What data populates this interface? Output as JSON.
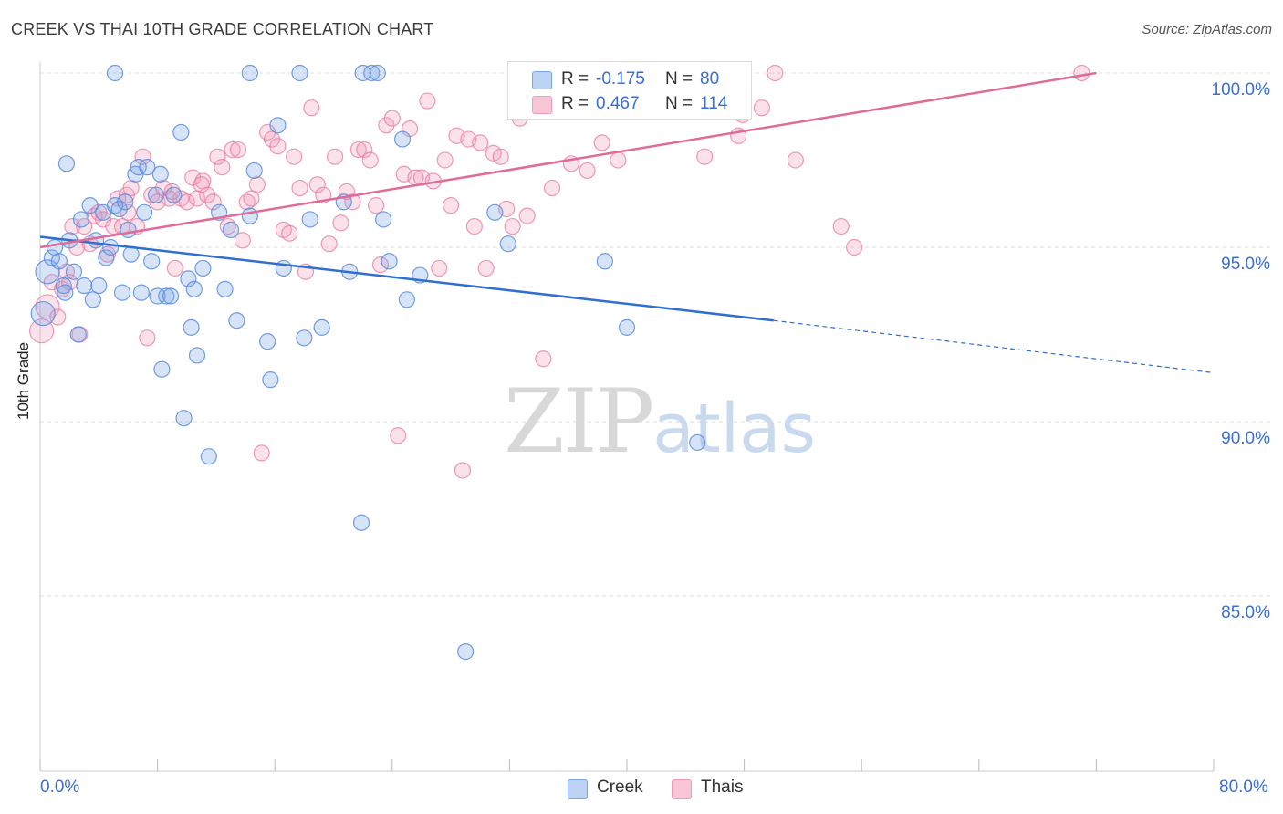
{
  "title": "CREEK VS THAI 10TH GRADE CORRELATION CHART",
  "source": "Source: ZipAtlas.com",
  "legend_top": {
    "rows": [
      {
        "r_label": "R =",
        "r_value": "-0.175",
        "n_label": "N =",
        "n_value": "80"
      },
      {
        "r_label": "R =",
        "r_value": "0.467",
        "n_label": "N =",
        "n_value": "114"
      }
    ]
  },
  "legend_bottom": {
    "creek": "Creek",
    "thais": "Thais"
  },
  "x_tick_labels": {
    "left": "0.0%",
    "right": "80.0%"
  },
  "watermark": {
    "zip": "ZIP",
    "atlas": "atlas"
  },
  "colors": {
    "creek": "#7aa6e8",
    "creek_line": "#2f6fd0",
    "thais": "#f39ab8",
    "thais_line": "#e06b98",
    "axis_text": "#3a6fd0",
    "grid": "#dddddd"
  },
  "chart_data": {
    "type": "scatter",
    "title": "CREEK VS THAI 10TH GRADE CORRELATION CHART",
    "xlabel": "",
    "ylabel": "10th Grade",
    "xlim": [
      0,
      80
    ],
    "ylim": [
      80.5,
      101
    ],
    "y_ticks": [
      {
        "value": 100,
        "label": "100.0%"
      },
      {
        "value": 95,
        "label": "95.0%"
      },
      {
        "value": 90,
        "label": "90.0%"
      },
      {
        "value": 85,
        "label": "85.0%"
      }
    ],
    "x_ticks": [
      0,
      8,
      16,
      24,
      32,
      40,
      48,
      56,
      64,
      72,
      80
    ],
    "grid": true,
    "legend_placement": "top-center",
    "series": [
      {
        "name": "Creek",
        "color": "#7aa6e8",
        "r": -0.175,
        "n": 80,
        "trend": {
          "x": [
            0,
            50
          ],
          "y": [
            95.3,
            92.9
          ],
          "dashed_to": [
            80,
            91.4
          ]
        },
        "points": [
          [
            0.2,
            93.1
          ],
          [
            0.5,
            94.3
          ],
          [
            0.8,
            94.7
          ],
          [
            1.0,
            95.0
          ],
          [
            1.3,
            94.6
          ],
          [
            1.6,
            93.9
          ],
          [
            1.7,
            93.7
          ],
          [
            2.0,
            95.2
          ],
          [
            2.3,
            94.3
          ],
          [
            2.6,
            92.5
          ],
          [
            2.8,
            95.8
          ],
          [
            3.0,
            93.9
          ],
          [
            3.4,
            96.2
          ],
          [
            3.6,
            93.5
          ],
          [
            3.8,
            95.2
          ],
          [
            4.0,
            93.9
          ],
          [
            4.3,
            96.0
          ],
          [
            4.5,
            94.7
          ],
          [
            4.8,
            95.0
          ],
          [
            5.1,
            96.2
          ],
          [
            5.4,
            96.1
          ],
          [
            5.6,
            93.7
          ],
          [
            5.8,
            96.3
          ],
          [
            6.0,
            95.5
          ],
          [
            6.2,
            94.8
          ],
          [
            6.5,
            97.1
          ],
          [
            6.7,
            97.3
          ],
          [
            6.9,
            93.7
          ],
          [
            7.1,
            96.0
          ],
          [
            7.3,
            97.3
          ],
          [
            7.6,
            94.6
          ],
          [
            7.9,
            96.5
          ],
          [
            8.0,
            93.6
          ],
          [
            8.2,
            97.1
          ],
          [
            8.3,
            91.5
          ],
          [
            8.6,
            93.6
          ],
          [
            8.9,
            93.6
          ],
          [
            9.1,
            96.5
          ],
          [
            9.6,
            98.3
          ],
          [
            9.8,
            90.1
          ],
          [
            10.1,
            94.1
          ],
          [
            10.3,
            92.7
          ],
          [
            10.5,
            93.8
          ],
          [
            10.7,
            91.9
          ],
          [
            11.1,
            94.4
          ],
          [
            11.5,
            89.0
          ],
          [
            12.2,
            96.0
          ],
          [
            12.6,
            93.8
          ],
          [
            13.0,
            95.5
          ],
          [
            13.4,
            92.9
          ],
          [
            14.3,
            95.9
          ],
          [
            14.6,
            97.2
          ],
          [
            15.5,
            92.3
          ],
          [
            15.7,
            91.2
          ],
          [
            16.2,
            98.5
          ],
          [
            16.6,
            94.4
          ],
          [
            18.0,
            92.4
          ],
          [
            18.4,
            95.8
          ],
          [
            19.2,
            92.7
          ],
          [
            20.7,
            96.3
          ],
          [
            21.1,
            94.3
          ],
          [
            21.9,
            87.1
          ],
          [
            22.6,
            100.0
          ],
          [
            23.0,
            100.0
          ],
          [
            23.4,
            95.8
          ],
          [
            23.8,
            94.6
          ],
          [
            24.7,
            98.1
          ],
          [
            25.0,
            93.5
          ],
          [
            25.9,
            94.2
          ],
          [
            29.0,
            83.4
          ],
          [
            31.0,
            96.0
          ],
          [
            31.9,
            95.1
          ],
          [
            38.5,
            94.6
          ],
          [
            40.0,
            92.7
          ],
          [
            44.8,
            89.4
          ],
          [
            5.1,
            100.0
          ],
          [
            14.3,
            100.0
          ],
          [
            17.7,
            100.0
          ],
          [
            22.0,
            100.0
          ],
          [
            1.8,
            97.4
          ]
        ]
      },
      {
        "name": "Thais",
        "color": "#f39ab8",
        "r": 0.467,
        "n": 114,
        "trend": {
          "x": [
            0,
            72
          ],
          "y": [
            95.0,
            100.0
          ]
        },
        "points": [
          [
            0.1,
            92.6
          ],
          [
            0.5,
            93.3
          ],
          [
            0.8,
            94.0
          ],
          [
            1.2,
            93.0
          ],
          [
            1.5,
            93.8
          ],
          [
            1.8,
            94.3
          ],
          [
            2.2,
            95.6
          ],
          [
            2.5,
            95.0
          ],
          [
            2.7,
            92.5
          ],
          [
            3.0,
            95.6
          ],
          [
            3.4,
            95.1
          ],
          [
            3.7,
            95.9
          ],
          [
            4.0,
            96.0
          ],
          [
            4.3,
            95.8
          ],
          [
            4.6,
            94.8
          ],
          [
            5.0,
            95.6
          ],
          [
            5.3,
            96.4
          ],
          [
            5.6,
            95.6
          ],
          [
            5.9,
            96.5
          ],
          [
            6.2,
            96.7
          ],
          [
            6.6,
            95.6
          ],
          [
            7.0,
            97.6
          ],
          [
            7.3,
            92.4
          ],
          [
            7.6,
            96.5
          ],
          [
            8.0,
            96.3
          ],
          [
            8.4,
            96.7
          ],
          [
            8.8,
            96.4
          ],
          [
            9.2,
            94.4
          ],
          [
            9.6,
            96.4
          ],
          [
            10.0,
            96.3
          ],
          [
            10.4,
            97.0
          ],
          [
            10.7,
            96.4
          ],
          [
            11.1,
            96.9
          ],
          [
            11.4,
            96.5
          ],
          [
            11.8,
            96.3
          ],
          [
            12.1,
            97.6
          ],
          [
            12.4,
            97.3
          ],
          [
            12.8,
            95.6
          ],
          [
            13.1,
            97.8
          ],
          [
            13.5,
            97.8
          ],
          [
            13.8,
            95.2
          ],
          [
            14.1,
            96.3
          ],
          [
            14.4,
            96.4
          ],
          [
            14.8,
            96.8
          ],
          [
            15.1,
            89.1
          ],
          [
            15.5,
            98.3
          ],
          [
            15.8,
            98.1
          ],
          [
            16.2,
            97.9
          ],
          [
            16.6,
            95.5
          ],
          [
            17.0,
            95.4
          ],
          [
            17.3,
            97.6
          ],
          [
            17.7,
            96.7
          ],
          [
            18.1,
            94.3
          ],
          [
            18.5,
            99.0
          ],
          [
            18.9,
            96.8
          ],
          [
            19.3,
            96.5
          ],
          [
            19.7,
            95.1
          ],
          [
            20.1,
            97.6
          ],
          [
            20.5,
            95.7
          ],
          [
            20.9,
            96.6
          ],
          [
            21.3,
            96.3
          ],
          [
            21.7,
            97.8
          ],
          [
            22.1,
            97.8
          ],
          [
            22.5,
            97.5
          ],
          [
            22.9,
            96.2
          ],
          [
            23.2,
            94.5
          ],
          [
            23.6,
            98.5
          ],
          [
            24.0,
            98.7
          ],
          [
            24.4,
            89.6
          ],
          [
            24.8,
            97.1
          ],
          [
            25.2,
            98.4
          ],
          [
            25.6,
            97.0
          ],
          [
            26.0,
            97.0
          ],
          [
            26.4,
            99.2
          ],
          [
            26.8,
            96.9
          ],
          [
            27.2,
            94.4
          ],
          [
            27.6,
            97.5
          ],
          [
            28.0,
            96.2
          ],
          [
            28.4,
            98.2
          ],
          [
            28.8,
            88.6
          ],
          [
            29.2,
            98.1
          ],
          [
            29.6,
            95.6
          ],
          [
            30.0,
            98.0
          ],
          [
            30.4,
            94.4
          ],
          [
            30.9,
            97.7
          ],
          [
            31.4,
            97.6
          ],
          [
            31.8,
            96.1
          ],
          [
            32.2,
            95.6
          ],
          [
            32.7,
            98.7
          ],
          [
            33.2,
            95.9
          ],
          [
            34.3,
            91.8
          ],
          [
            34.9,
            96.7
          ],
          [
            36.2,
            97.4
          ],
          [
            37.3,
            97.2
          ],
          [
            38.3,
            98.0
          ],
          [
            39.4,
            97.5
          ],
          [
            40.0,
            100.0
          ],
          [
            40.8,
            99.6
          ],
          [
            44.0,
            99.5
          ],
          [
            45.3,
            97.6
          ],
          [
            47.6,
            98.2
          ],
          [
            47.9,
            98.8
          ],
          [
            49.2,
            99.0
          ],
          [
            50.1,
            100.0
          ],
          [
            51.5,
            97.5
          ],
          [
            54.6,
            95.6
          ],
          [
            55.5,
            95.0
          ],
          [
            71.0,
            100.0
          ],
          [
            33.0,
            100.0
          ],
          [
            37.5,
            100.0
          ],
          [
            9.0,
            96.6
          ],
          [
            2.0,
            94.0
          ],
          [
            6.0,
            96.0
          ],
          [
            11.0,
            96.8
          ]
        ]
      }
    ]
  }
}
